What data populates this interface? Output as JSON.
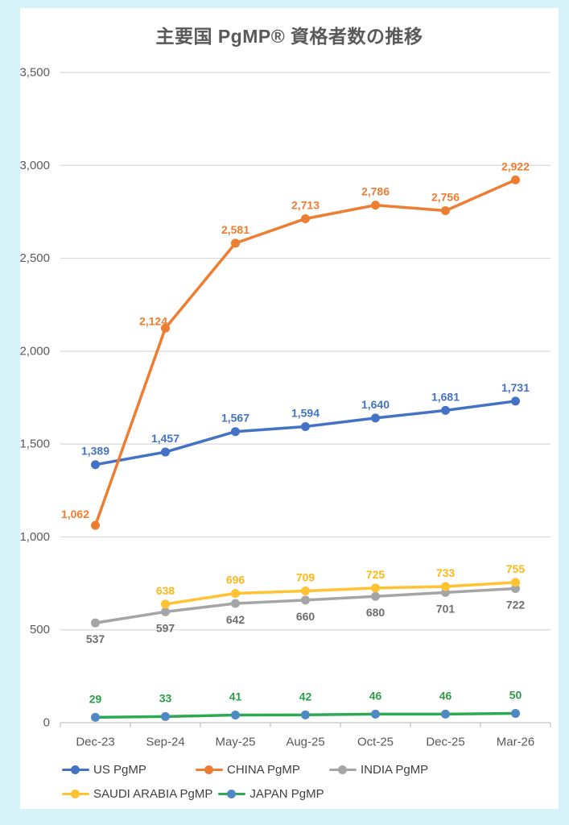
{
  "title": "主要国 PgMP® 資格者数の推移",
  "colors": {
    "page_background": "#d5f2f8",
    "card_background": "#ffffff",
    "gridline": "#d9d9d9",
    "axis_line": "#c4c4c4",
    "tick_text": "#595959",
    "legend_text": "#404040"
  },
  "chart_data": {
    "type": "line",
    "title": "主要国 PgMP® 資格者数の推移",
    "categories": [
      "Dec-23",
      "Sep-24",
      "May-25",
      "Aug-25",
      "Oct-25",
      "Dec-25",
      "Mar-26"
    ],
    "xlabel": "",
    "ylabel": "",
    "ylim": [
      0,
      3500
    ],
    "ytick_step": 500,
    "ytick_labels": [
      "0",
      "500",
      "1,000",
      "1,500",
      "2,000",
      "2,500",
      "3,000",
      "3,500"
    ],
    "grid": true,
    "legend_position": "bottom",
    "series": [
      {
        "name": "US PgMP",
        "line_color": "#4472c4",
        "marker_color": "#4472c4",
        "label_color": "#4472c4",
        "label_position": "above",
        "label_dy": -17,
        "values": [
          1389,
          1457,
          1567,
          1594,
          1640,
          1681,
          1731
        ]
      },
      {
        "name": "CHINA PgMP",
        "line_color": "#ed7d31",
        "marker_color": "#ed7d31",
        "label_color": "#ed7d31",
        "label_position": "above",
        "label_dy": -17,
        "label_offsets": {
          "0": [
            -25,
            3
          ],
          "1": [
            -15,
            8
          ]
        },
        "values": [
          1062,
          2124,
          2581,
          2713,
          2786,
          2756,
          2922
        ]
      },
      {
        "name": "INDIA PgMP",
        "line_color": "#a5a5a5",
        "marker_color": "#a5a5a5",
        "label_color": "#6e6e6e",
        "label_position": "below",
        "label_dy": 20,
        "values": [
          537,
          597,
          642,
          660,
          680,
          701,
          722
        ]
      },
      {
        "name": "SAUDI ARABIA PgMP",
        "line_color": "#ffc233",
        "marker_color": "#ffc233",
        "label_color": "#ffb715",
        "label_position": "above",
        "label_dy": -17,
        "values": [
          null,
          638,
          696,
          709,
          725,
          733,
          755
        ]
      },
      {
        "name": "JAPAN PgMP",
        "line_color": "#2ea953",
        "marker_color": "#4f88c5",
        "label_color": "#2c9c47",
        "label_position": "above",
        "label_dy": -23,
        "values": [
          29,
          33,
          41,
          42,
          46,
          46,
          50
        ]
      }
    ]
  },
  "legend": {
    "rows": [
      [
        "US PgMP",
        "CHINA PgMP",
        "INDIA PgMP"
      ],
      [
        "SAUDI ARABIA PgMP",
        "JAPAN PgMP"
      ]
    ]
  }
}
